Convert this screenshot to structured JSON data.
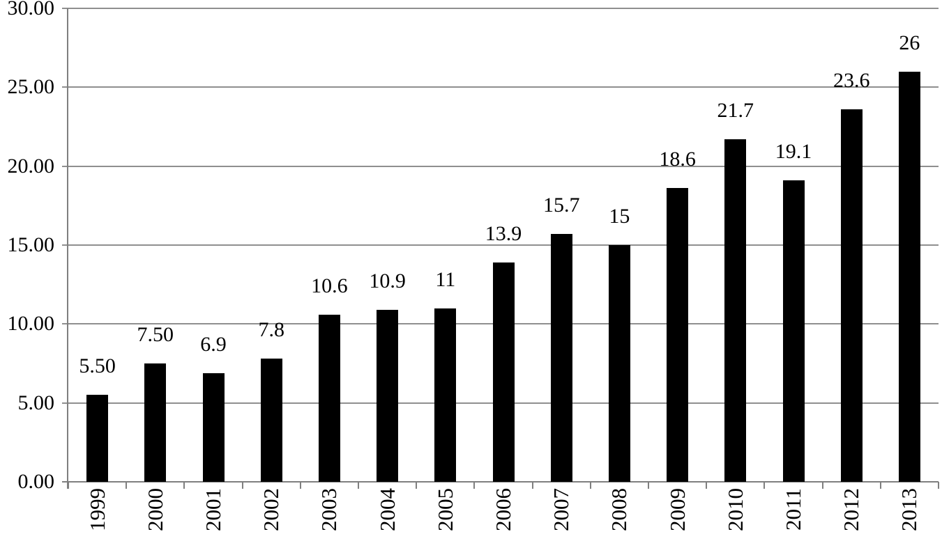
{
  "chart_data": {
    "type": "bar",
    "title": "",
    "xlabel": "",
    "ylabel": "",
    "categories": [
      "1999",
      "2000",
      "2001",
      "2002",
      "2003",
      "2004",
      "2005",
      "2006",
      "2007",
      "2008",
      "2009",
      "2010",
      "2011",
      "2012",
      "2013"
    ],
    "values": [
      5.5,
      7.5,
      6.9,
      7.8,
      10.6,
      10.9,
      11,
      13.9,
      15.7,
      15,
      18.6,
      21.7,
      19.1,
      23.6,
      26
    ],
    "value_labels": [
      "5.50",
      "7.50",
      "6.9",
      "7.8",
      "10.6",
      "10.9",
      "11",
      "13.9",
      "15.7",
      "15",
      "18.6",
      "21.7",
      "19.1",
      "23.6",
      "26"
    ],
    "ylim": [
      0,
      30
    ],
    "y_tick_values": [
      0,
      5,
      10,
      15,
      20,
      25,
      30
    ],
    "y_tick_labels": [
      "0.00",
      "5.00",
      "10.00",
      "15.00",
      "20.00",
      "25.00",
      "30.00"
    ],
    "grid": true,
    "legend_position": "none",
    "bar_color": "#000000",
    "gridline_color": "#8f8f8f",
    "axis_color": "#7f7f7f",
    "background_color": "#ffffff",
    "x_labels_rotated_degrees": 90
  }
}
